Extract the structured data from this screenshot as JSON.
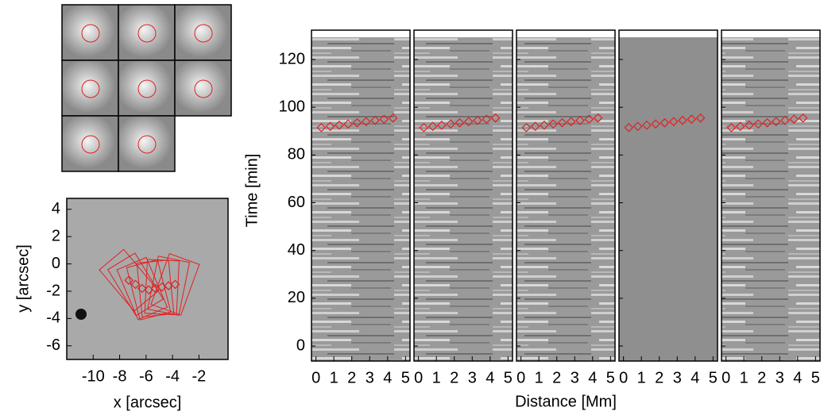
{
  "chart_data": [
    {
      "type": "map",
      "xlabel": "x [arcsec]",
      "ylabel": "y [arcsec]",
      "xlim": [
        -12,
        0.2
      ],
      "ylim": [
        -7,
        4.8
      ],
      "xticks": [
        -10,
        -8,
        -6,
        -4,
        -2
      ],
      "yticks": [
        -6,
        -4,
        -2,
        0,
        2,
        4
      ],
      "color": "#e02020",
      "x": [
        -7.3,
        -6.8,
        -6.3,
        -5.8,
        -5.3,
        -4.8,
        -4.3,
        -3.8
      ],
      "y": [
        -1.2,
        -1.5,
        -1.8,
        -1.9,
        -1.8,
        -1.7,
        -1.6,
        -1.5
      ]
    },
    {
      "type": "time-distance",
      "xlabel": "Distance [Mm]",
      "ylabel": "Time [min]",
      "xlim": [
        -0.25,
        5.25
      ],
      "ylim": [
        -6.3,
        132.3
      ],
      "xticks": [
        0,
        1,
        2,
        3,
        4,
        5
      ],
      "yticks": [
        0,
        20,
        40,
        60,
        80,
        100,
        120
      ],
      "color": "#e02020",
      "x": [
        0.3,
        0.8,
        1.3,
        1.8,
        2.3,
        2.8,
        3.3,
        3.8,
        4.3
      ],
      "y": [
        91.5,
        92,
        92.5,
        93,
        93.5,
        94,
        94.5,
        95,
        95.5
      ]
    }
  ]
}
